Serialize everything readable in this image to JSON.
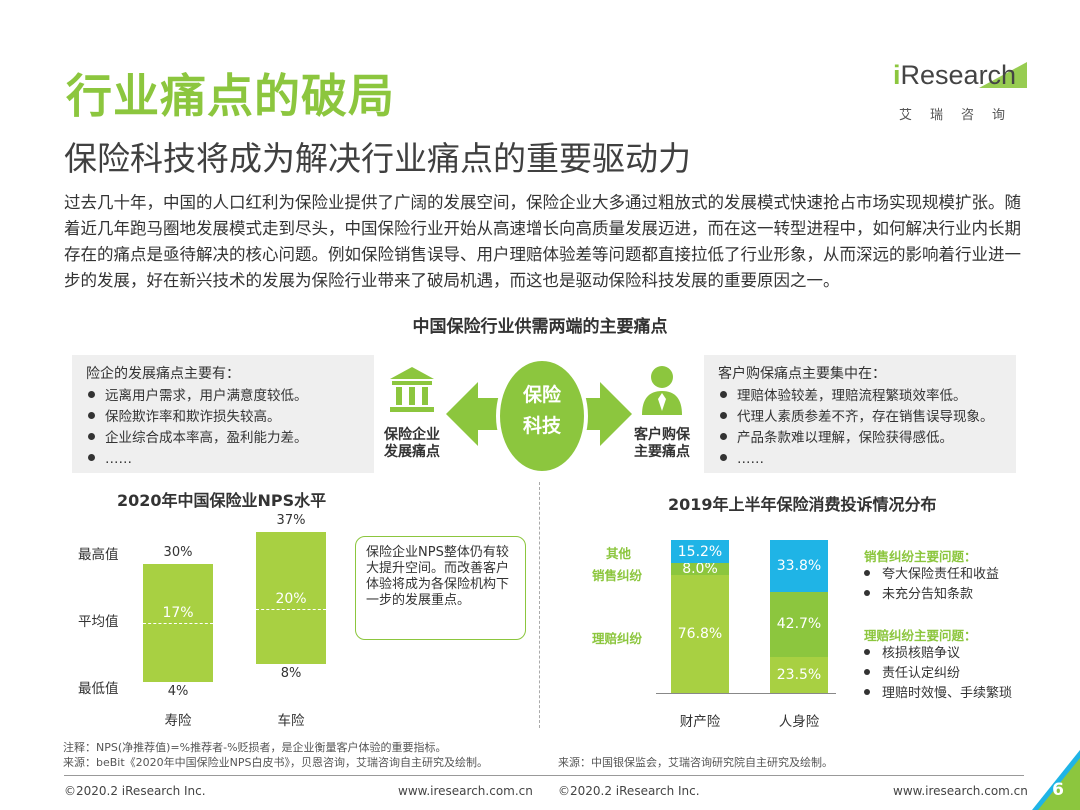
{
  "header": {
    "title": "行业痛点的破局",
    "subtitle": "保险科技将成为解决行业痛点的重要驱动力",
    "logo_text": "Research",
    "logo_i": "i",
    "logo_cn": "艾瑞咨询"
  },
  "intro": "过去几十年，中国的人口红利为保险业提供了广阔的发展空间，保险企业大多通过粗放式的发展模式快速抢占市场实现规模扩张。随着近几年跑马圈地发展模式走到尽头，中国保险行业开始从高速增长向高质量发展迈进，而在这一转型进程中，如何解决行业内长期存在的痛点是亟待解决的核心问题。例如保险销售误导、用户理赔体验差等问题都直接拉低了行业形象，从而深远的影响着行业进一步的发展，好在新兴技术的发展为保险行业带来了破局机遇，而这也是驱动保险科技发展的重要原因之一。",
  "diagram": {
    "title": "中国保险行业供需两端的主要痛点",
    "left": {
      "head": "险企的发展痛点主要有：",
      "items": [
        "远离用户需求，用户满意度较低。",
        "保险欺诈率和欺诈损失较高。",
        "企业综合成本率高，盈利能力差。",
        "……"
      ],
      "icon_label_1": "保险企业",
      "icon_label_2": "发展痛点"
    },
    "center": {
      "line1": "保险",
      "line2": "科技"
    },
    "right": {
      "head": "客户购保痛点主要集中在：",
      "items": [
        "理赔体验较差，理赔流程繁琐效率低。",
        "代理人素质参差不齐，存在销售误导现象。",
        "产品条款难以理解，保险获得感低。",
        "……"
      ],
      "icon_label_1": "客户购保",
      "icon_label_2": "主要痛点"
    }
  },
  "nps": {
    "title": "2020年中国保险业NPS水平",
    "axis": {
      "max": "最高值",
      "avg": "平均值",
      "min": "最低值"
    },
    "callout": "保险企业NPS整体仍有较大提升空间。而改善客户体验将成为各保险机构下一步的发展重点。",
    "note": "注释：NPS(净推荐值)=%推荐者-%贬损者，是企业衡量客户体验的重要指标。",
    "source": "来源：beBit《2020年中国保险业NPS白皮书》，贝恩咨询，艾瑞咨询自主研究及绘制。"
  },
  "complaints": {
    "title": "2019年上半年保险消费投诉情况分布",
    "sales_head": "销售纠纷主要问题：",
    "sales_items": [
      "夸大保险责任和收益",
      "未充分告知条款"
    ],
    "claims_head": "理赔纠纷主要问题：",
    "claims_items": [
      "核损核赔争议",
      "责任认定纠纷",
      "理赔时效慢、手续繁琐"
    ],
    "source": "来源：中国银保监会，艾瑞咨询研究院自主研究及绘制。"
  },
  "chart_data": [
    {
      "type": "bar",
      "title": "2020年中国保险业NPS水平",
      "categories": [
        "寿险",
        "车险"
      ],
      "max_labels": [
        "30%",
        "37%"
      ],
      "avg_labels": [
        "17%",
        "20%"
      ],
      "min_labels": [
        "4%",
        "8%"
      ],
      "max": [
        30,
        37
      ],
      "avg": [
        17,
        20
      ],
      "min": [
        4,
        8
      ],
      "ylim": [
        0,
        40
      ]
    },
    {
      "type": "bar",
      "title": "2019年上半年保险消费投诉情况分布",
      "categories": [
        "财产险",
        "人身险"
      ],
      "series": [
        {
          "name": "理赔纠纷",
          "values": [
            76.8,
            23.5
          ],
          "labels": [
            "76.8%",
            "23.5%"
          ],
          "color": "#a8d042"
        },
        {
          "name": "销售纠纷",
          "values": [
            8.0,
            42.7
          ],
          "labels": [
            "8.0%",
            "42.7%"
          ],
          "color": "#8cc63e"
        },
        {
          "name": "其他",
          "values": [
            15.2,
            33.8
          ],
          "labels": [
            "15.2%",
            "33.8%"
          ],
          "color": "#1fb4e6"
        }
      ]
    }
  ],
  "footer": {
    "left_copy": "©2020.2 iResearch Inc.",
    "left_url": "www.iresearch.com.cn",
    "right_copy": "©2020.2 iResearch Inc.",
    "right_url": "www.iresearch.com.cn",
    "page": "6"
  },
  "colors": {
    "accent": "#8cc63e",
    "bar": "#a8d042",
    "blue": "#1fb4e6"
  }
}
